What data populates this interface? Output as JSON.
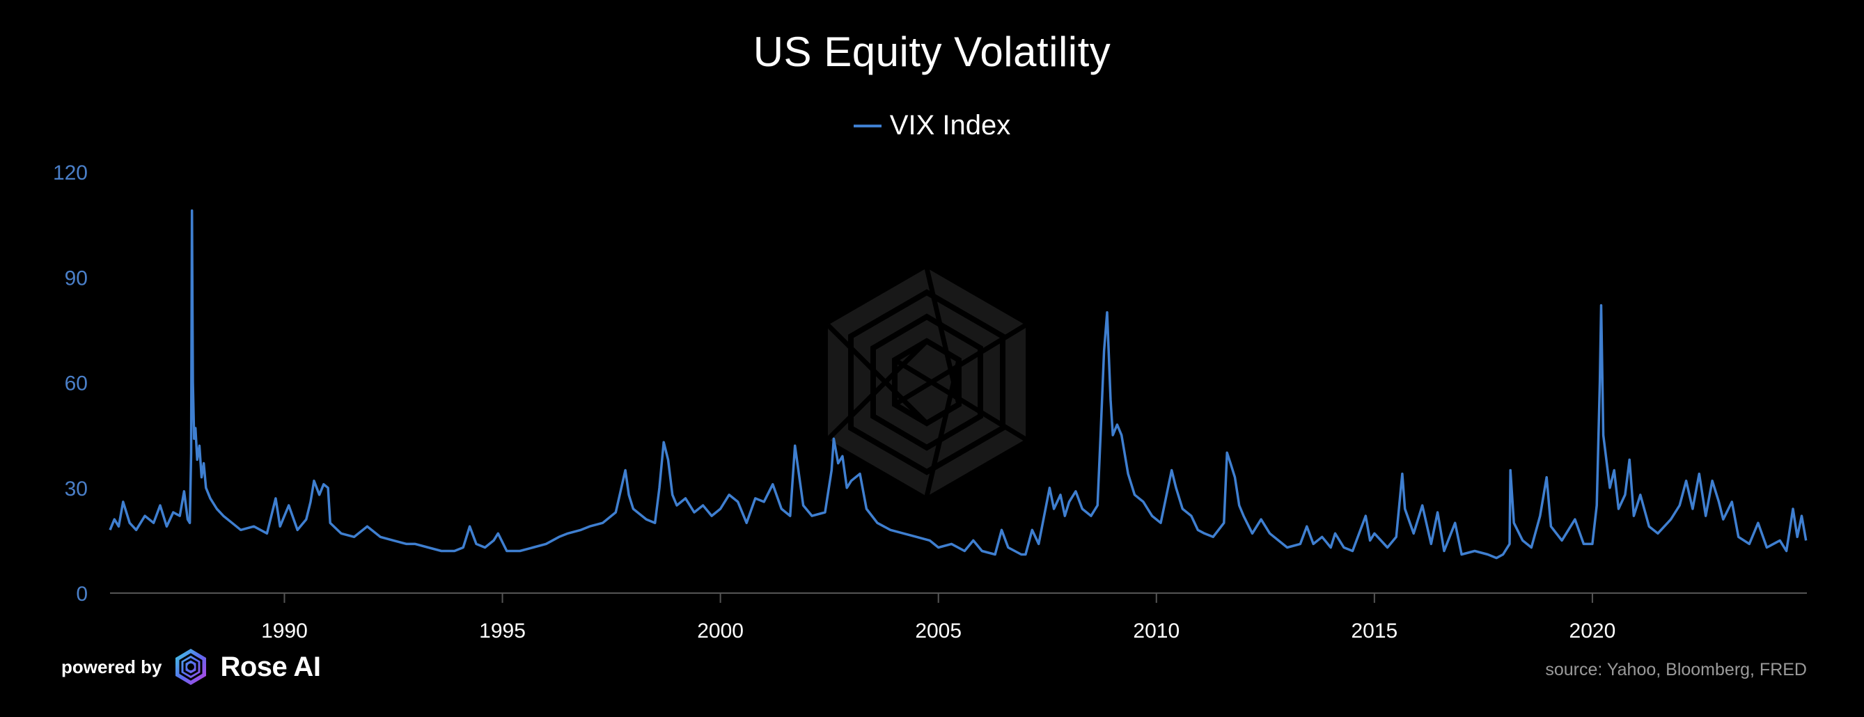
{
  "header": {
    "title": "US Equity Volatility"
  },
  "legend": {
    "label": "VIX Index"
  },
  "footer": {
    "powered_by": "powered by",
    "brand": "Rose AI",
    "source": "source: Yahoo, Bloomberg, FRED"
  },
  "colors": {
    "background": "#000000",
    "series": "#3f7fd0",
    "y_tick_text": "#4a7fc8",
    "x_tick_text": "#ffffff",
    "axis": "#555555",
    "source_text": "#9a9a9a"
  },
  "chart_data": {
    "type": "line",
    "title": "US Equity Volatility",
    "xlabel": "",
    "ylabel": "",
    "ylim": [
      0,
      120
    ],
    "xlim": [
      1986.0,
      2024.92
    ],
    "y_ticks": [
      "0",
      "30",
      "60",
      "90",
      "120"
    ],
    "x_ticks": [
      "1990",
      "1995",
      "2000",
      "2005",
      "2010",
      "2015",
      "2020"
    ],
    "grid": false,
    "legend_position": "top-center",
    "series": [
      {
        "name": "VIX Index",
        "points": [
          [
            1986.0,
            18
          ],
          [
            1986.1,
            21
          ],
          [
            1986.2,
            19
          ],
          [
            1986.3,
            26
          ],
          [
            1986.45,
            20
          ],
          [
            1986.6,
            18
          ],
          [
            1986.8,
            22
          ],
          [
            1987.0,
            20
          ],
          [
            1987.15,
            25
          ],
          [
            1987.3,
            19
          ],
          [
            1987.45,
            23
          ],
          [
            1987.6,
            22
          ],
          [
            1987.7,
            29
          ],
          [
            1987.78,
            21
          ],
          [
            1987.83,
            20
          ],
          [
            1987.86,
            40
          ],
          [
            1987.88,
            109
          ],
          [
            1987.9,
            60
          ],
          [
            1987.93,
            44
          ],
          [
            1987.96,
            47
          ],
          [
            1988.0,
            38
          ],
          [
            1988.05,
            42
          ],
          [
            1988.1,
            33
          ],
          [
            1988.15,
            37
          ],
          [
            1988.2,
            30
          ],
          [
            1988.3,
            27
          ],
          [
            1988.45,
            24
          ],
          [
            1988.6,
            22
          ],
          [
            1988.8,
            20
          ],
          [
            1989.0,
            18
          ],
          [
            1989.3,
            19
          ],
          [
            1989.6,
            17
          ],
          [
            1989.8,
            27
          ],
          [
            1989.9,
            19
          ],
          [
            1990.1,
            25
          ],
          [
            1990.3,
            18
          ],
          [
            1990.5,
            21
          ],
          [
            1990.6,
            26
          ],
          [
            1990.68,
            32
          ],
          [
            1990.8,
            28
          ],
          [
            1990.9,
            31
          ],
          [
            1991.0,
            30
          ],
          [
            1991.05,
            20
          ],
          [
            1991.3,
            17
          ],
          [
            1991.6,
            16
          ],
          [
            1991.9,
            19
          ],
          [
            1992.2,
            16
          ],
          [
            1992.5,
            15
          ],
          [
            1992.8,
            14
          ],
          [
            1993.0,
            14
          ],
          [
            1993.3,
            13
          ],
          [
            1993.6,
            12
          ],
          [
            1993.9,
            12
          ],
          [
            1994.1,
            13
          ],
          [
            1994.25,
            19
          ],
          [
            1994.4,
            14
          ],
          [
            1994.6,
            13
          ],
          [
            1994.8,
            15
          ],
          [
            1994.9,
            17
          ],
          [
            1995.1,
            12
          ],
          [
            1995.4,
            12
          ],
          [
            1995.7,
            13
          ],
          [
            1996.0,
            14
          ],
          [
            1996.3,
            16
          ],
          [
            1996.5,
            17
          ],
          [
            1996.8,
            18
          ],
          [
            1997.0,
            19
          ],
          [
            1997.3,
            20
          ],
          [
            1997.6,
            23
          ],
          [
            1997.82,
            35
          ],
          [
            1997.9,
            28
          ],
          [
            1998.0,
            24
          ],
          [
            1998.3,
            21
          ],
          [
            1998.5,
            20
          ],
          [
            1998.6,
            30
          ],
          [
            1998.7,
            43
          ],
          [
            1998.8,
            38
          ],
          [
            1998.9,
            28
          ],
          [
            1999.0,
            25
          ],
          [
            1999.2,
            27
          ],
          [
            1999.4,
            23
          ],
          [
            1999.6,
            25
          ],
          [
            1999.8,
            22
          ],
          [
            2000.0,
            24
          ],
          [
            2000.2,
            28
          ],
          [
            2000.4,
            26
          ],
          [
            2000.6,
            20
          ],
          [
            2000.8,
            27
          ],
          [
            2001.0,
            26
          ],
          [
            2001.2,
            31
          ],
          [
            2001.4,
            24
          ],
          [
            2001.6,
            22
          ],
          [
            2001.71,
            42
          ],
          [
            2001.8,
            34
          ],
          [
            2001.9,
            25
          ],
          [
            2002.1,
            22
          ],
          [
            2002.4,
            23
          ],
          [
            2002.55,
            35
          ],
          [
            2002.6,
            44
          ],
          [
            2002.7,
            37
          ],
          [
            2002.8,
            39
          ],
          [
            2002.9,
            30
          ],
          [
            2003.0,
            32
          ],
          [
            2003.2,
            34
          ],
          [
            2003.35,
            24
          ],
          [
            2003.6,
            20
          ],
          [
            2003.9,
            18
          ],
          [
            2004.2,
            17
          ],
          [
            2004.5,
            16
          ],
          [
            2004.8,
            15
          ],
          [
            2005.0,
            13
          ],
          [
            2005.3,
            14
          ],
          [
            2005.6,
            12
          ],
          [
            2005.8,
            15
          ],
          [
            2006.0,
            12
          ],
          [
            2006.3,
            11
          ],
          [
            2006.45,
            18
          ],
          [
            2006.6,
            13
          ],
          [
            2006.9,
            11
          ],
          [
            2007.0,
            11
          ],
          [
            2007.15,
            18
          ],
          [
            2007.3,
            14
          ],
          [
            2007.55,
            30
          ],
          [
            2007.65,
            24
          ],
          [
            2007.8,
            28
          ],
          [
            2007.9,
            22
          ],
          [
            2008.0,
            26
          ],
          [
            2008.15,
            29
          ],
          [
            2008.3,
            24
          ],
          [
            2008.5,
            22
          ],
          [
            2008.65,
            25
          ],
          [
            2008.72,
            45
          ],
          [
            2008.8,
            69
          ],
          [
            2008.87,
            80
          ],
          [
            2008.95,
            55
          ],
          [
            2009.0,
            45
          ],
          [
            2009.1,
            48
          ],
          [
            2009.2,
            45
          ],
          [
            2009.35,
            34
          ],
          [
            2009.5,
            28
          ],
          [
            2009.7,
            26
          ],
          [
            2009.9,
            22
          ],
          [
            2010.1,
            20
          ],
          [
            2010.35,
            35
          ],
          [
            2010.45,
            30
          ],
          [
            2010.6,
            24
          ],
          [
            2010.8,
            22
          ],
          [
            2010.95,
            18
          ],
          [
            2011.1,
            17
          ],
          [
            2011.3,
            16
          ],
          [
            2011.55,
            20
          ],
          [
            2011.62,
            40
          ],
          [
            2011.7,
            37
          ],
          [
            2011.8,
            33
          ],
          [
            2011.9,
            25
          ],
          [
            2012.0,
            22
          ],
          [
            2012.2,
            17
          ],
          [
            2012.4,
            21
          ],
          [
            2012.6,
            17
          ],
          [
            2012.8,
            15
          ],
          [
            2013.0,
            13
          ],
          [
            2013.3,
            14
          ],
          [
            2013.45,
            19
          ],
          [
            2013.6,
            14
          ],
          [
            2013.8,
            16
          ],
          [
            2014.0,
            13
          ],
          [
            2014.1,
            17
          ],
          [
            2014.3,
            13
          ],
          [
            2014.5,
            12
          ],
          [
            2014.8,
            22
          ],
          [
            2014.9,
            15
          ],
          [
            2015.0,
            17
          ],
          [
            2015.3,
            13
          ],
          [
            2015.5,
            16
          ],
          [
            2015.64,
            34
          ],
          [
            2015.7,
            24
          ],
          [
            2015.9,
            17
          ],
          [
            2016.1,
            25
          ],
          [
            2016.3,
            14
          ],
          [
            2016.45,
            23
          ],
          [
            2016.6,
            12
          ],
          [
            2016.85,
            20
          ],
          [
            2017.0,
            11
          ],
          [
            2017.3,
            12
          ],
          [
            2017.6,
            11
          ],
          [
            2017.8,
            10
          ],
          [
            2017.95,
            11
          ],
          [
            2018.1,
            14
          ],
          [
            2018.12,
            35
          ],
          [
            2018.2,
            20
          ],
          [
            2018.4,
            15
          ],
          [
            2018.6,
            13
          ],
          [
            2018.8,
            22
          ],
          [
            2018.95,
            33
          ],
          [
            2019.05,
            19
          ],
          [
            2019.3,
            15
          ],
          [
            2019.6,
            21
          ],
          [
            2019.8,
            14
          ],
          [
            2020.0,
            14
          ],
          [
            2020.1,
            25
          ],
          [
            2020.17,
            60
          ],
          [
            2020.2,
            82
          ],
          [
            2020.25,
            45
          ],
          [
            2020.4,
            30
          ],
          [
            2020.5,
            35
          ],
          [
            2020.6,
            24
          ],
          [
            2020.75,
            28
          ],
          [
            2020.85,
            38
          ],
          [
            2020.95,
            22
          ],
          [
            2021.1,
            28
          ],
          [
            2021.3,
            19
          ],
          [
            2021.5,
            17
          ],
          [
            2021.8,
            21
          ],
          [
            2022.0,
            25
          ],
          [
            2022.15,
            32
          ],
          [
            2022.3,
            24
          ],
          [
            2022.45,
            34
          ],
          [
            2022.6,
            22
          ],
          [
            2022.75,
            32
          ],
          [
            2022.9,
            26
          ],
          [
            2023.0,
            21
          ],
          [
            2023.2,
            26
          ],
          [
            2023.35,
            16
          ],
          [
            2023.6,
            14
          ],
          [
            2023.8,
            20
          ],
          [
            2024.0,
            13
          ],
          [
            2024.3,
            15
          ],
          [
            2024.45,
            12
          ],
          [
            2024.6,
            24
          ],
          [
            2024.7,
            16
          ],
          [
            2024.8,
            22
          ],
          [
            2024.9,
            15
          ]
        ]
      }
    ]
  }
}
